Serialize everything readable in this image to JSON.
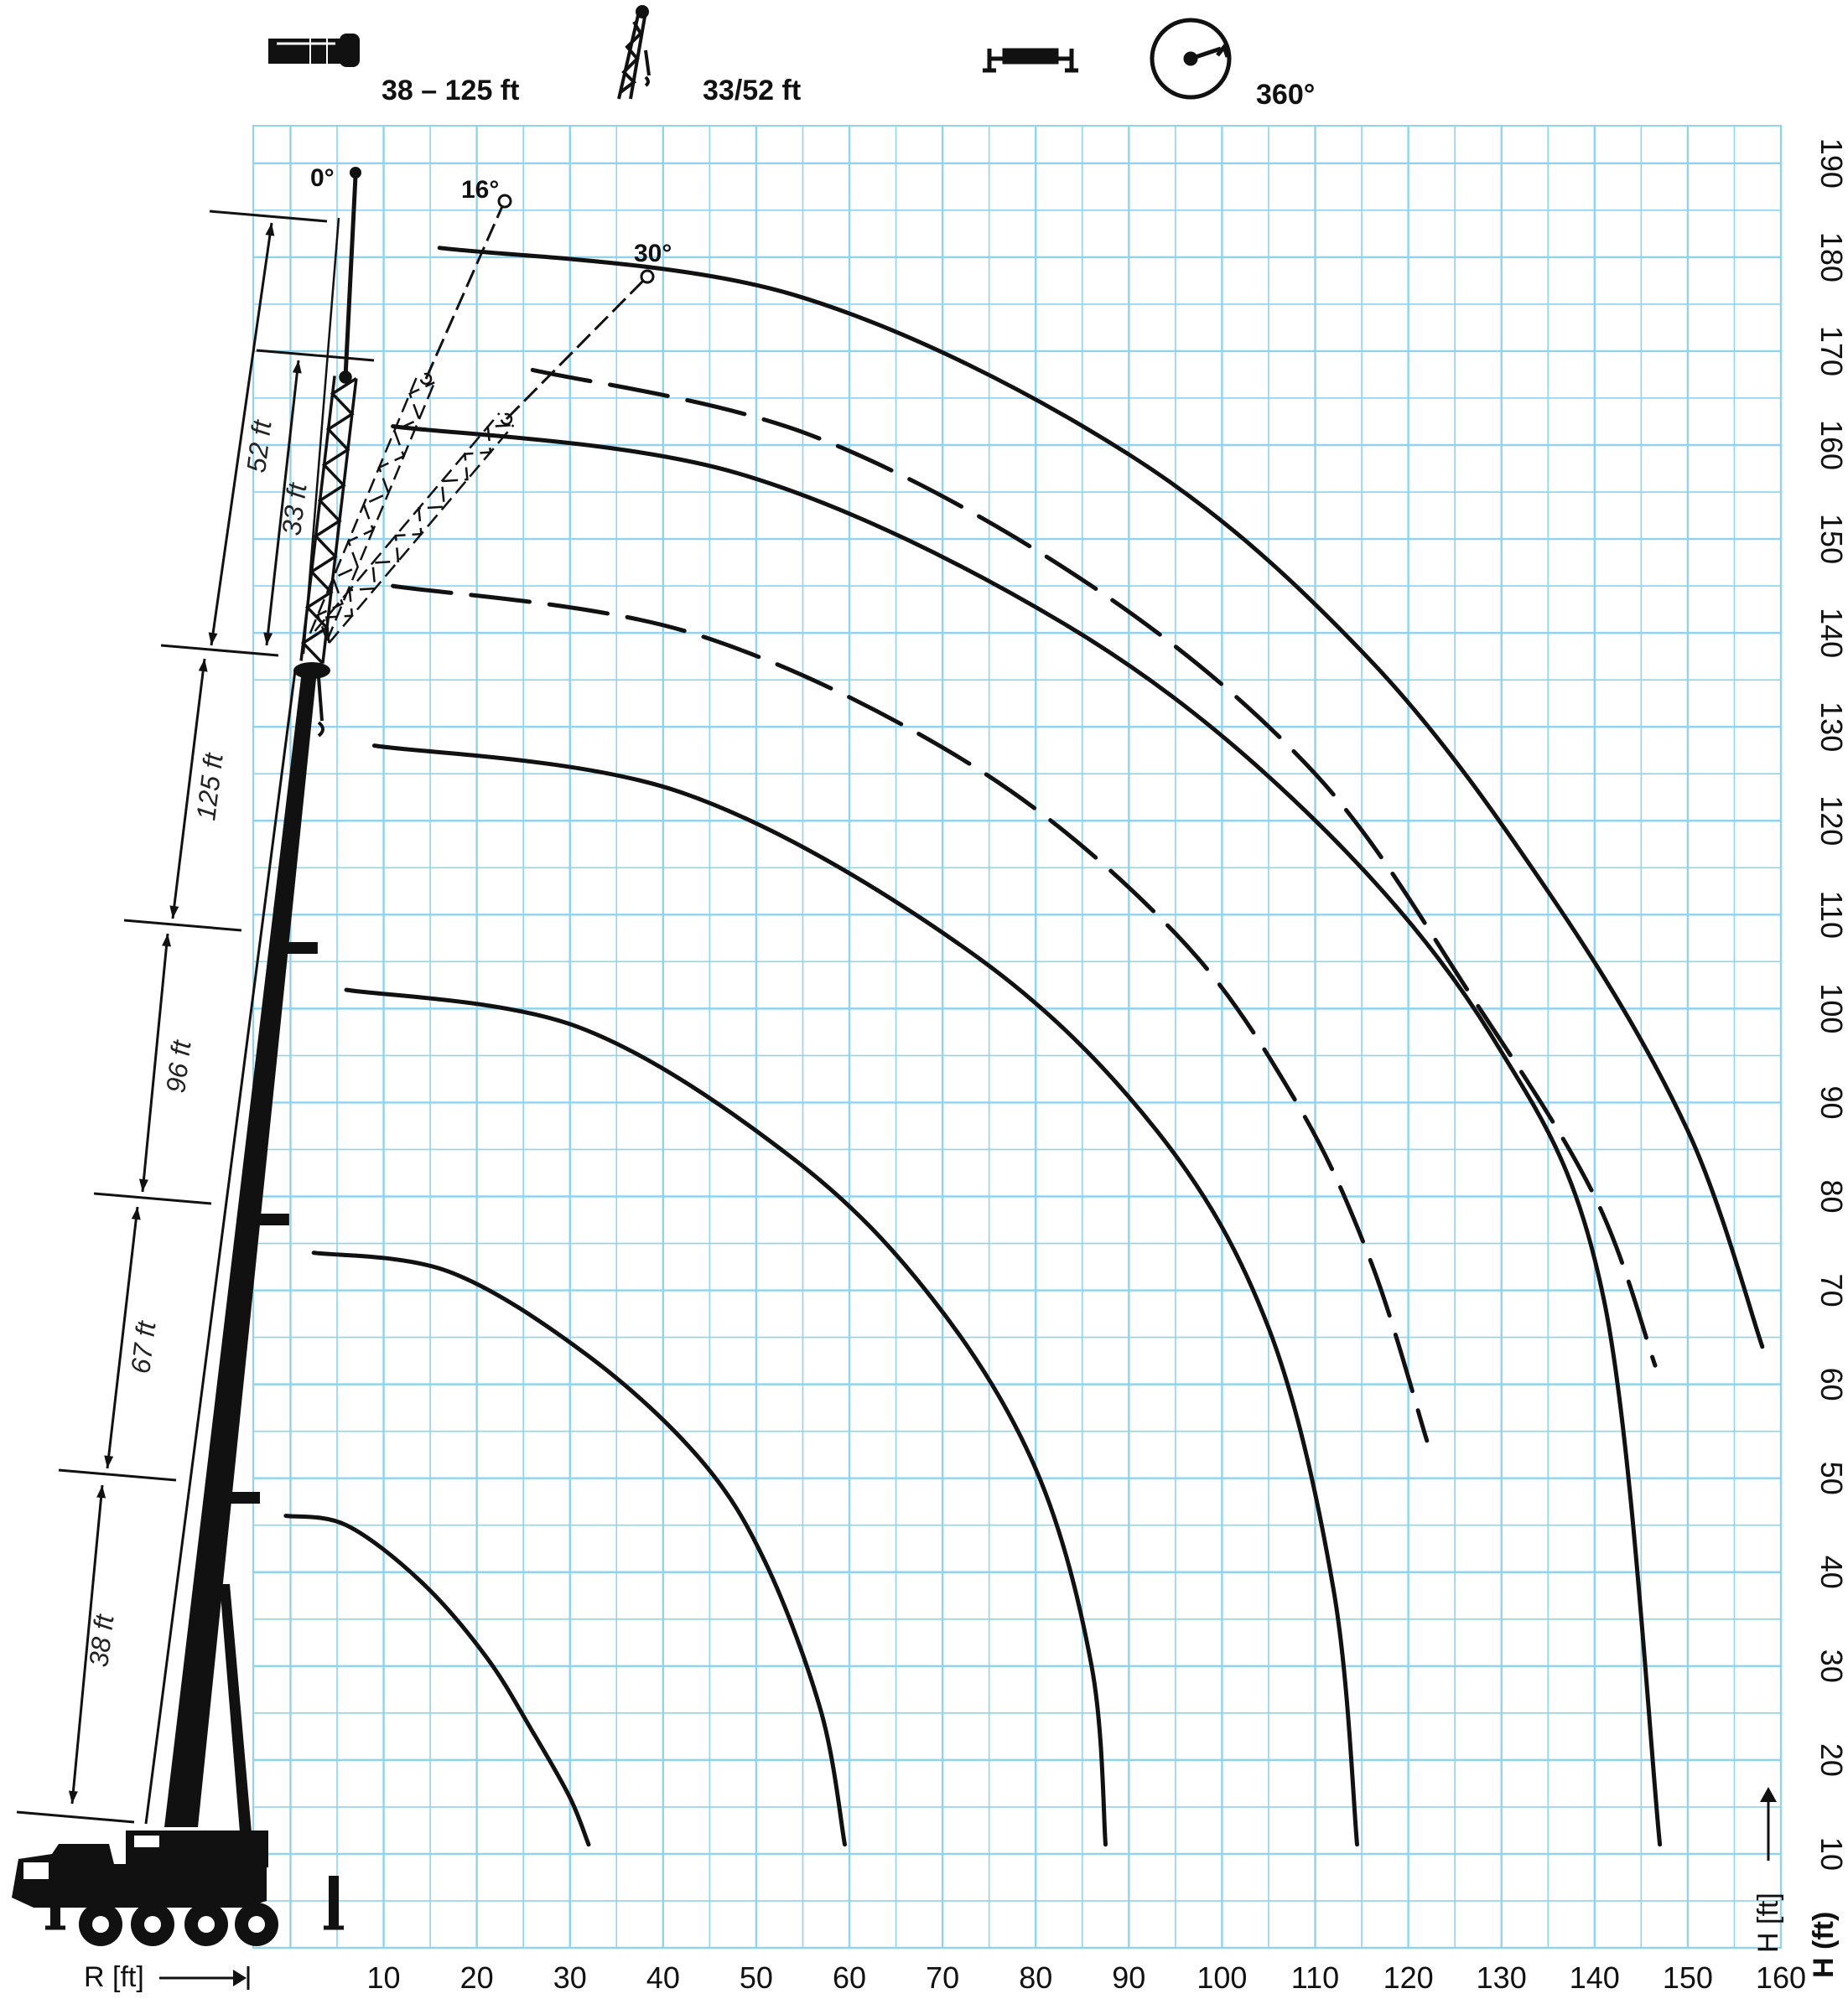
{
  "header": {
    "boom_range": "38 – 125 ft",
    "jib_lengths": "33/52 ft",
    "slewing": "360°",
    "icons": [
      "telescopic-boom-icon",
      "lattice-jib-icon",
      "outrigger-base-icon",
      "slewing-circle-icon"
    ]
  },
  "axes": {
    "x_label": "R [ft]",
    "y_label": "H (ft)",
    "y_label_rotated": "H [ft]",
    "x_ticks": [
      "10",
      "20",
      "30",
      "40",
      "50",
      "60",
      "70",
      "80",
      "90",
      "100",
      "110",
      "120",
      "130",
      "140",
      "150",
      "160"
    ],
    "y_ticks": [
      "10",
      "20",
      "30",
      "40",
      "50",
      "60",
      "70",
      "80",
      "90",
      "100",
      "110",
      "120",
      "130",
      "140",
      "150",
      "160",
      "170",
      "180",
      "190"
    ],
    "x_range": [
      -4,
      160
    ],
    "y_range": [
      0,
      194
    ]
  },
  "boom_sections": [
    "38 ft",
    "67 ft",
    "96 ft",
    "125 ft"
  ],
  "jib_sections": [
    "33 ft",
    "52 ft"
  ],
  "jib_angles": [
    "0°",
    "16°",
    "30°"
  ],
  "colors": {
    "grid": "#8fd3ec",
    "ink": "#111111",
    "background": "#ffffff"
  },
  "chart_data": {
    "type": "line",
    "title": "",
    "xlabel": "R [ft]",
    "ylabel": "H (ft)",
    "xlim": [
      -4,
      160
    ],
    "ylim": [
      0,
      194
    ],
    "grid": true,
    "series": [
      {
        "style": "solid",
        "x": [
          -0.5,
          6,
          14,
          21,
          26,
          30,
          32
        ],
        "y": [
          46,
          45,
          39,
          31,
          23,
          16,
          11
        ]
      },
      {
        "style": "solid",
        "x": [
          2.5,
          17,
          32,
          44,
          51,
          57,
          59.5
        ],
        "y": [
          74,
          72,
          63,
          52,
          41,
          25,
          11
        ]
      },
      {
        "style": "solid",
        "x": [
          6,
          31,
          54,
          69,
          80,
          86,
          87.5
        ],
        "y": [
          102,
          98,
          84,
          69,
          51,
          30,
          11
        ]
      },
      {
        "style": "solid",
        "x": [
          9,
          42,
          73,
          93,
          105,
          112,
          114.5
        ],
        "y": [
          128,
          123,
          106,
          87,
          66,
          38,
          11
        ]
      },
      {
        "style": "dashed",
        "x": [
          11,
          43,
          73,
          95,
          108,
          116,
          122
        ],
        "y": [
          145,
          140,
          126,
          108,
          90,
          73,
          54
        ]
      },
      {
        "style": "solid",
        "x": [
          11,
          48,
          83,
          109,
          129,
          141,
          147
        ],
        "y": [
          162,
          157,
          141,
          121,
          97,
          69,
          11
        ]
      },
      {
        "style": "dashed",
        "x": [
          26,
          56,
          86,
          110,
          127,
          140,
          146.5
        ],
        "y": [
          168,
          161,
          145,
          125,
          101,
          80,
          62
        ]
      },
      {
        "style": "solid",
        "x": [
          16,
          54,
          90,
          116,
          136,
          150,
          158
        ],
        "y": [
          181,
          176,
          159,
          137,
          111,
          87,
          64
        ]
      }
    ]
  }
}
